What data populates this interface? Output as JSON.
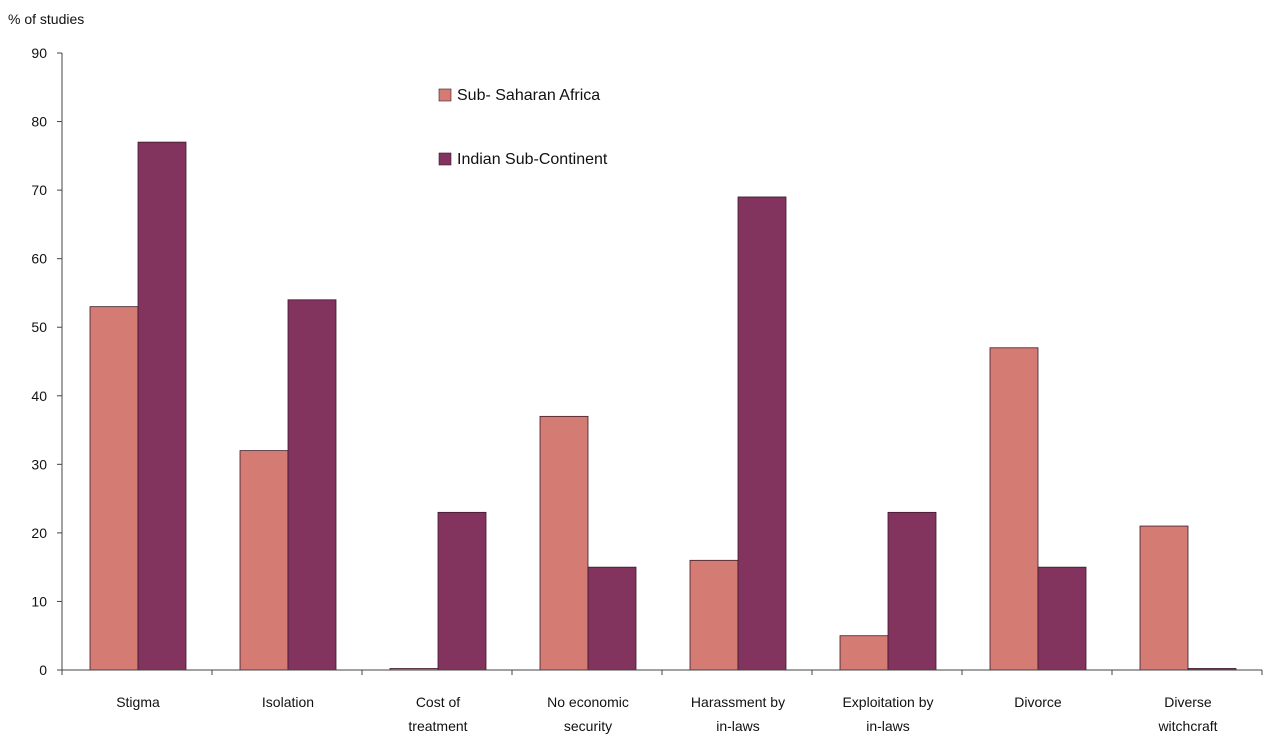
{
  "chart_data": {
    "type": "bar",
    "title": "",
    "xlabel": "",
    "ylabel": "% of studies",
    "ylim": [
      0,
      90
    ],
    "yticks": [
      0,
      10,
      20,
      30,
      40,
      50,
      60,
      70,
      80,
      90
    ],
    "grid": false,
    "legend_position": "top-center",
    "categories": [
      [
        "Stigma"
      ],
      [
        "Isolation"
      ],
      [
        "Cost of",
        "treatment"
      ],
      [
        "No economic",
        "security"
      ],
      [
        "Harassment by",
        "in-laws"
      ],
      [
        "Exploitation by",
        "in-laws"
      ],
      [
        "Divorce"
      ],
      [
        "Diverse",
        "witchcraft"
      ]
    ],
    "series": [
      {
        "name": "Sub- Saharan Africa",
        "color": "#d47b74",
        "values": [
          53,
          32,
          0,
          37,
          16,
          5,
          47,
          21
        ]
      },
      {
        "name": "Indian Sub-Continent",
        "color": "#83345e",
        "values": [
          77,
          54,
          23,
          15,
          69,
          23,
          15,
          0
        ]
      }
    ]
  }
}
